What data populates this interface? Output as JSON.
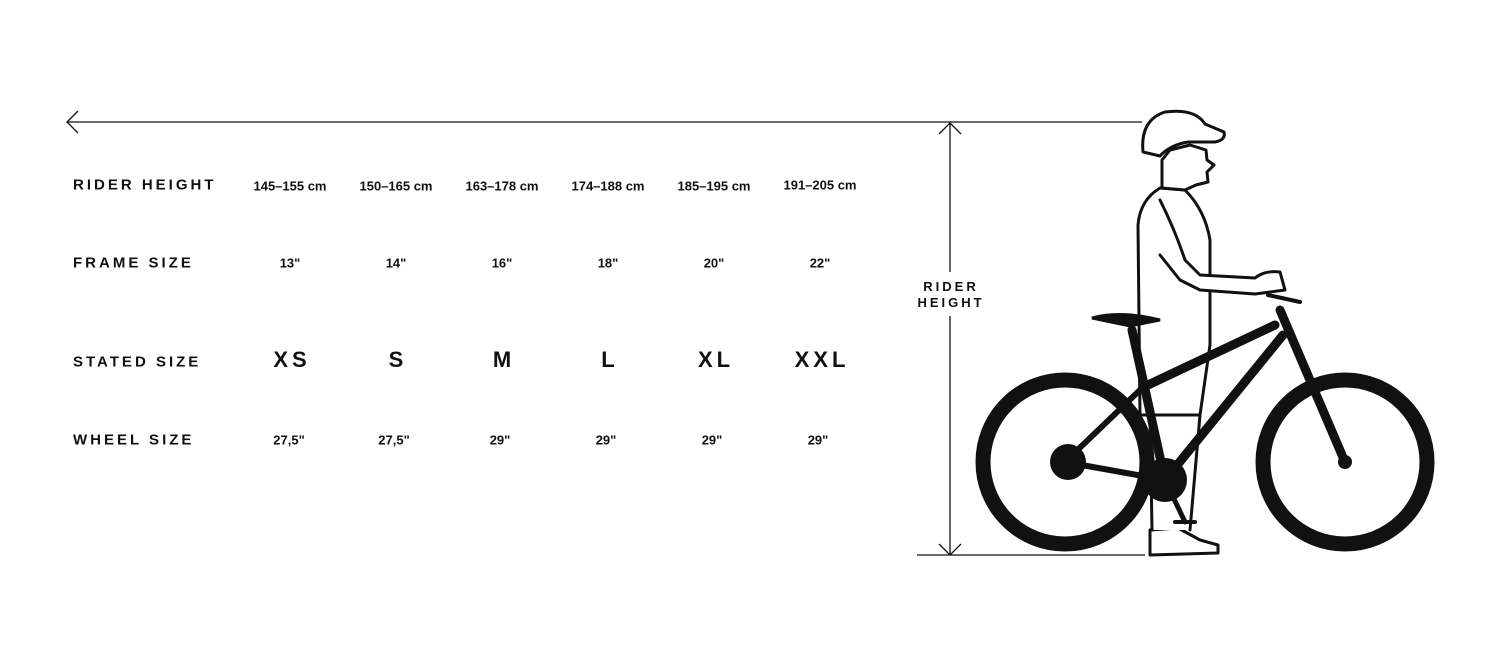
{
  "rows": [
    {
      "label": "RIDER HEIGHT",
      "values": [
        "145–155 cm",
        "150–165 cm",
        "163–178 cm",
        "174–188 cm",
        "185–195 cm",
        "191–205 cm"
      ]
    },
    {
      "label": "FRAME SIZE",
      "values": [
        "13\"",
        "14\"",
        "16\"",
        "18\"",
        "20\"",
        "22\""
      ]
    },
    {
      "label": "STATED SIZE",
      "values": [
        "XS",
        "S",
        "M",
        "L",
        "XL",
        "XXL"
      ]
    },
    {
      "label": "WHEEL SIZE",
      "values": [
        "27,5\"",
        "27,5\"",
        "29\"",
        "29\"",
        "29\"",
        "29\""
      ]
    }
  ],
  "illustration": {
    "label_line1": "RIDER",
    "label_line2": "HEIGHT"
  }
}
